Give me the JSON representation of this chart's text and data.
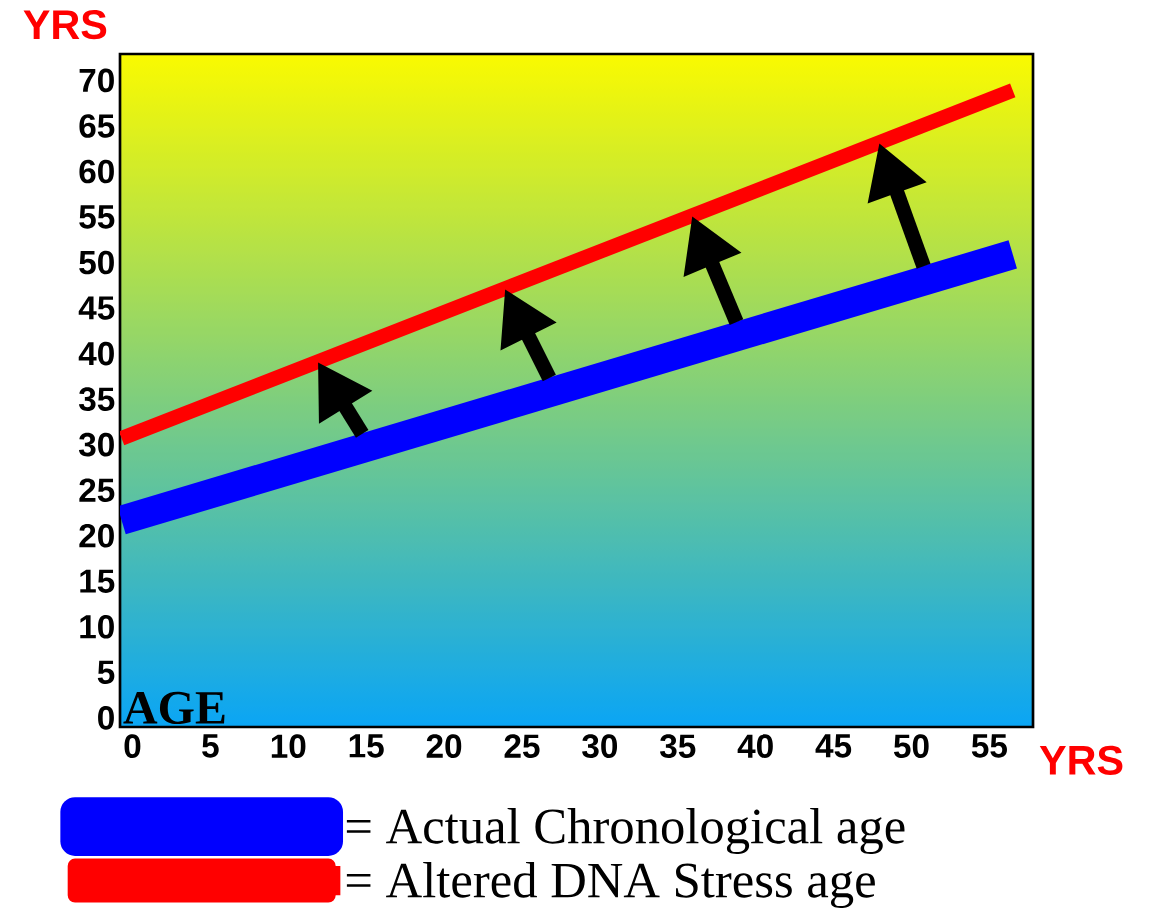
{
  "chart_data": {
    "type": "line",
    "xlabel": "YRS",
    "ylabel": "YRS",
    "annotations": [
      "AGE"
    ],
    "x": [
      -0.7,
      56.5
    ],
    "series": [
      {
        "name": "= Actual Chronological age",
        "color": "#0000ff",
        "values": [
          21.7,
          50.9
        ]
      },
      {
        "name": "= Altered DNA Stress age",
        "color": "#ff0000",
        "values": [
          30.7,
          68.9
        ]
      }
    ],
    "xlim": [
      -0.8,
      57.8
    ],
    "ylim": [
      -1,
      72.9
    ],
    "xticks": [
      0,
      5,
      10,
      15,
      20,
      25,
      30,
      35,
      40,
      45,
      50,
      55
    ],
    "yticks": [
      0,
      5,
      10,
      15,
      20,
      25,
      30,
      35,
      40,
      45,
      50,
      55,
      60,
      65,
      70
    ],
    "legend": "bottom",
    "marker": "none"
  }
}
